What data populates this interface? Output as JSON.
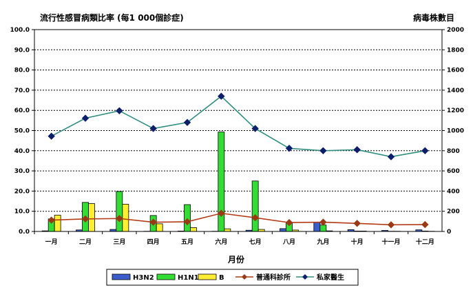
{
  "chart_data": {
    "type": "bar+line",
    "title": "流行性感冒病類比率 (每1 000個診症)",
    "y2label": "病毒株數目",
    "xlabel": "月份",
    "categories": [
      "一月",
      "二月",
      "三月",
      "四月",
      "五月",
      "六月",
      "七月",
      "八月",
      "九月",
      "十月",
      "十一月",
      "十二月"
    ],
    "y_ticks": [
      "0.0",
      "10.0",
      "20.0",
      "30.0",
      "40.0",
      "50.0",
      "60.0",
      "70.0",
      "80.0",
      "90.0",
      "100.0"
    ],
    "y2_ticks": [
      "0",
      "200",
      "400",
      "600",
      "800",
      "1000",
      "1200",
      "1400",
      "1600",
      "1800",
      "2000"
    ],
    "ylim": [
      0,
      100
    ],
    "y2lim": [
      0,
      2000
    ],
    "grid": true,
    "legend_position": "bottom",
    "bar_series": [
      {
        "name": "H3N2",
        "color": "#3a5fcd",
        "values": [
          6,
          15,
          20,
          2,
          4,
          2,
          12,
          28,
          90,
          18,
          10,
          16
        ]
      },
      {
        "name": "H1N1",
        "color": "#33dd33",
        "values": [
          124,
          288,
          396,
          158,
          266,
          986,
          500,
          82,
          64,
          4,
          2,
          4
        ]
      },
      {
        "name": "B",
        "color": "#ffee33",
        "values": [
          162,
          276,
          270,
          76,
          38,
          26,
          20,
          14,
          6,
          4,
          2,
          2
        ]
      }
    ],
    "line_series": [
      {
        "name": "普通科診所",
        "color": "#b33a14",
        "marker": "diamond",
        "values": [
          5.6,
          6.2,
          6.4,
          4.6,
          4.8,
          9.0,
          6.8,
          4.4,
          4.6,
          4.0,
          3.3,
          3.4
        ]
      },
      {
        "name": "私家醫生",
        "color": "#2f8f7f",
        "marker": "diamond",
        "values": [
          47.2,
          56.1,
          59.8,
          51.0,
          54.0,
          67.0,
          51.0,
          41.2,
          40.0,
          40.5,
          37.0,
          40.0
        ]
      }
    ]
  }
}
